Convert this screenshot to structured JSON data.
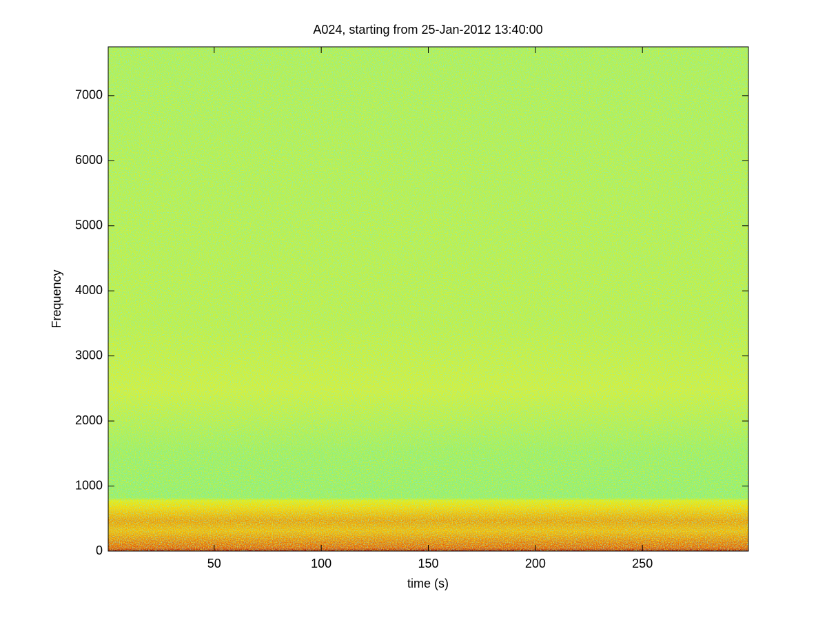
{
  "chart_data": {
    "type": "spectrogram",
    "title": "A024, starting from 25-Jan-2012 13:40:00",
    "x_label": "time (s)",
    "y_label": "Frequency",
    "xlim": [
      0.5,
      299.5
    ],
    "xticks": [
      50,
      100,
      150,
      200,
      250
    ],
    "ylim": [
      0,
      7750
    ],
    "yticks": [
      0,
      1000,
      2000,
      3000,
      4000,
      5000,
      6000,
      7000
    ]
  }
}
